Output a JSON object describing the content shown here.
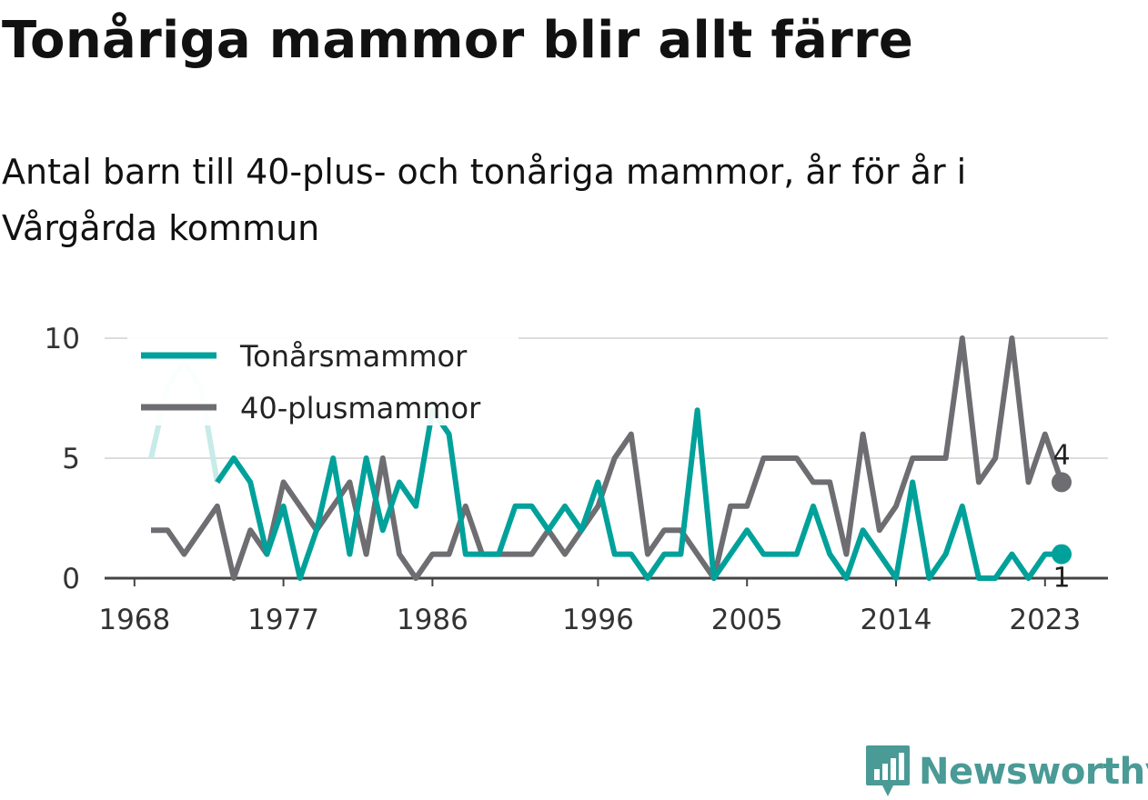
{
  "header": {
    "title": "Tonåriga mammor blir allt färre",
    "subtitle": "Antal barn till 40-plus- och tonåriga mammor, år för år i Vårgårda kommun"
  },
  "brand": {
    "name": "Newsworthy",
    "color": "#4a9a96",
    "icon": "bar-chart-pin-icon"
  },
  "chart_data": {
    "type": "line",
    "title": "",
    "xlabel": "",
    "ylabel": "",
    "x": [
      1969,
      1970,
      1971,
      1972,
      1973,
      1974,
      1975,
      1976,
      1977,
      1978,
      1979,
      1980,
      1981,
      1982,
      1983,
      1984,
      1985,
      1986,
      1987,
      1988,
      1989,
      1990,
      1991,
      1992,
      1993,
      1994,
      1995,
      1996,
      1997,
      1998,
      1999,
      2000,
      2001,
      2002,
      2003,
      2004,
      2005,
      2006,
      2007,
      2008,
      2009,
      2010,
      2011,
      2012,
      2013,
      2014,
      2015,
      2016,
      2017,
      2018,
      2019,
      2020,
      2021,
      2022,
      2023,
      2024
    ],
    "x_ticks": [
      1968,
      1977,
      1986,
      1996,
      2005,
      2014,
      2023
    ],
    "y_ticks": [
      0,
      5,
      10
    ],
    "ylim": [
      0,
      10.6
    ],
    "grid": true,
    "legend": "top-left",
    "series": [
      {
        "name": "Tonårsmammor",
        "color": "#00a19a",
        "faded_color": "#c7ebe9",
        "faded_years": [
          1970,
          1971,
          1972
        ],
        "values": [
          5,
          8,
          9,
          8,
          4,
          5,
          4,
          1,
          3,
          0,
          2,
          5,
          1,
          5,
          2,
          4,
          3,
          7,
          6,
          1,
          1,
          1,
          3,
          3,
          2,
          3,
          2,
          4,
          1,
          1,
          0,
          1,
          1,
          7,
          0,
          1,
          2,
          1,
          1,
          1,
          3,
          1,
          0,
          2,
          1,
          0,
          4,
          0,
          1,
          3,
          0,
          0,
          1,
          0,
          1,
          1
        ],
        "end_label": "1"
      },
      {
        "name": "40-plusmammor",
        "color": "#6e6d72",
        "values": [
          2,
          2,
          1,
          2,
          3,
          0,
          2,
          1,
          4,
          3,
          2,
          3,
          4,
          1,
          5,
          1,
          0,
          1,
          1,
          3,
          1,
          1,
          1,
          1,
          2,
          1,
          2,
          3,
          5,
          6,
          1,
          2,
          2,
          1,
          0,
          3,
          3,
          5,
          5,
          5,
          4,
          4,
          1,
          6,
          2,
          3,
          5,
          5,
          5,
          10,
          4,
          5,
          10,
          4,
          6,
          4
        ],
        "end_label": "4"
      }
    ]
  }
}
